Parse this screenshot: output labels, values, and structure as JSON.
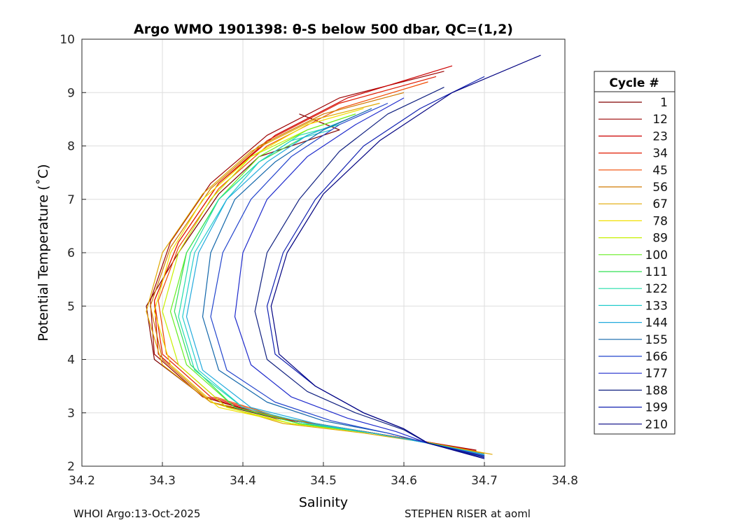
{
  "chart_data": {
    "type": "line",
    "title": "Argo WMO 1901398: θ-S below 500 dbar,  QC=(1,2)",
    "xlabel": "Salinity",
    "ylabel": "Potential Temperature (˚C)",
    "xlim": [
      34.2,
      34.8
    ],
    "ylim": [
      2,
      10
    ],
    "xticks": [
      "34.2",
      "34.3",
      "34.4",
      "34.5",
      "34.6",
      "34.7",
      "34.8"
    ],
    "yticks": [
      "2",
      "3",
      "4",
      "5",
      "6",
      "7",
      "8",
      "9",
      "10"
    ],
    "grid": true,
    "legend": {
      "title": "Cycle #",
      "placement": "outside-right",
      "entries": [
        "1",
        "12",
        "23",
        "34",
        "45",
        "56",
        "67",
        "78",
        "89",
        "100",
        "111",
        "122",
        "133",
        "144",
        "155",
        "166",
        "177",
        "188",
        "199",
        "210"
      ],
      "colors": [
        "#800000",
        "#9c0000",
        "#cc0000",
        "#e01a00",
        "#f04a00",
        "#d07a00",
        "#e0a800",
        "#f2e000",
        "#c8f000",
        "#66ee22",
        "#33e055",
        "#22ddaa",
        "#22cccc",
        "#22aadd",
        "#1166aa",
        "#2244cc",
        "#1f2bcc",
        "#102080",
        "#1020b0",
        "#000080"
      ]
    },
    "series": [
      {
        "name": "1",
        "color": "#800000",
        "s": [
          34.47,
          34.52,
          34.42,
          34.37,
          34.32,
          34.28,
          34.29,
          34.36,
          34.44,
          34.55,
          34.63,
          34.68
        ],
        "t": [
          8.6,
          8.3,
          7.8,
          7.1,
          6.0,
          5.0,
          4.0,
          3.2,
          2.9,
          2.65,
          2.45,
          2.3
        ]
      },
      {
        "name": "12",
        "color": "#9c0000",
        "s": [
          34.65,
          34.52,
          34.43,
          34.36,
          34.31,
          34.285,
          34.29,
          34.35,
          34.44,
          34.55,
          34.63,
          34.69
        ],
        "t": [
          9.4,
          8.9,
          8.2,
          7.3,
          6.2,
          5.1,
          4.1,
          3.3,
          2.9,
          2.65,
          2.45,
          2.3
        ]
      },
      {
        "name": "23",
        "color": "#cc0000",
        "s": [
          34.66,
          34.53,
          34.44,
          34.37,
          34.32,
          34.29,
          34.295,
          34.355,
          34.44,
          34.55,
          34.63,
          34.69
        ],
        "t": [
          9.5,
          8.9,
          8.2,
          7.3,
          6.2,
          5.1,
          4.1,
          3.3,
          2.9,
          2.65,
          2.45,
          2.28
        ]
      },
      {
        "name": "34",
        "color": "#e01a00",
        "s": [
          34.64,
          34.52,
          34.43,
          34.37,
          34.32,
          34.29,
          34.3,
          34.36,
          34.445,
          34.55,
          34.63,
          34.69
        ],
        "t": [
          9.3,
          8.8,
          8.1,
          7.3,
          6.2,
          5.1,
          4.1,
          3.3,
          2.9,
          2.65,
          2.45,
          2.28
        ]
      },
      {
        "name": "45",
        "color": "#f04a00",
        "s": [
          34.63,
          34.52,
          34.43,
          34.37,
          34.32,
          34.295,
          34.305,
          34.365,
          34.45,
          34.55,
          34.63,
          34.69
        ],
        "t": [
          9.2,
          8.7,
          8.0,
          7.2,
          6.1,
          5.1,
          4.1,
          3.3,
          2.9,
          2.65,
          2.45,
          2.26
        ]
      },
      {
        "name": "56",
        "color": "#d07a00",
        "s": [
          34.6,
          34.5,
          34.42,
          34.36,
          34.31,
          34.285,
          34.3,
          34.36,
          34.45,
          34.55,
          34.63,
          34.7
        ],
        "t": [
          9.0,
          8.6,
          8.0,
          7.2,
          6.1,
          5.0,
          4.0,
          3.2,
          2.9,
          2.65,
          2.44,
          2.24
        ]
      },
      {
        "name": "67",
        "color": "#e0a800",
        "s": [
          34.57,
          34.49,
          34.41,
          34.35,
          34.3,
          34.28,
          34.3,
          34.36,
          34.45,
          34.55,
          34.63,
          34.71
        ],
        "t": [
          8.8,
          8.5,
          7.9,
          7.1,
          6.0,
          4.9,
          3.9,
          3.2,
          2.8,
          2.62,
          2.44,
          2.22
        ]
      },
      {
        "name": "78",
        "color": "#f2e000",
        "s": [
          34.55,
          34.48,
          34.41,
          34.35,
          34.31,
          34.29,
          34.31,
          34.37,
          34.46,
          34.56,
          34.63,
          34.7
        ],
        "t": [
          8.7,
          8.4,
          7.8,
          7.0,
          6.0,
          4.9,
          3.9,
          3.1,
          2.8,
          2.62,
          2.44,
          2.22
        ]
      },
      {
        "name": "89",
        "color": "#c8f000",
        "s": [
          34.54,
          34.48,
          34.41,
          34.36,
          34.32,
          34.3,
          34.32,
          34.38,
          34.46,
          34.56,
          34.63,
          34.7
        ],
        "t": [
          8.6,
          8.3,
          7.8,
          7.0,
          6.0,
          4.9,
          3.9,
          3.1,
          2.8,
          2.62,
          2.44,
          2.22
        ]
      },
      {
        "name": "100",
        "color": "#66ee22",
        "s": [
          34.54,
          34.48,
          34.42,
          34.37,
          34.33,
          34.31,
          34.33,
          34.39,
          34.47,
          34.56,
          34.63,
          34.7
        ],
        "t": [
          8.6,
          8.3,
          7.8,
          7.0,
          6.0,
          4.9,
          3.9,
          3.1,
          2.8,
          2.62,
          2.44,
          2.22
        ]
      },
      {
        "name": "111",
        "color": "#33e055",
        "s": [
          34.53,
          34.48,
          34.42,
          34.37,
          34.33,
          34.315,
          34.335,
          34.39,
          34.47,
          34.56,
          34.63,
          34.7
        ],
        "t": [
          8.5,
          8.2,
          7.7,
          7.0,
          6.0,
          4.9,
          3.9,
          3.1,
          2.8,
          2.62,
          2.44,
          2.22
        ]
      },
      {
        "name": "122",
        "color": "#22ddaa",
        "s": [
          34.52,
          34.47,
          34.42,
          34.37,
          34.335,
          34.32,
          34.34,
          34.4,
          34.48,
          34.57,
          34.63,
          34.7
        ],
        "t": [
          8.4,
          8.2,
          7.7,
          7.0,
          6.0,
          4.8,
          3.8,
          3.1,
          2.8,
          2.6,
          2.43,
          2.22
        ]
      },
      {
        "name": "133",
        "color": "#22cccc",
        "s": [
          34.51,
          34.46,
          34.42,
          34.38,
          34.34,
          34.325,
          34.345,
          34.4,
          34.48,
          34.57,
          34.63,
          34.7
        ],
        "t": [
          8.3,
          8.1,
          7.7,
          7.0,
          6.0,
          4.8,
          3.8,
          3.1,
          2.8,
          2.6,
          2.43,
          2.22
        ]
      },
      {
        "name": "144",
        "color": "#22aadd",
        "s": [
          34.53,
          34.48,
          34.43,
          34.38,
          34.345,
          34.33,
          34.35,
          34.41,
          34.49,
          34.57,
          34.63,
          34.7
        ],
        "t": [
          8.5,
          8.2,
          7.7,
          7.0,
          6.0,
          4.8,
          3.8,
          3.1,
          2.8,
          2.6,
          2.43,
          2.22
        ]
      },
      {
        "name": "155",
        "color": "#1166aa",
        "s": [
          34.56,
          34.5,
          34.44,
          34.39,
          34.36,
          34.35,
          34.37,
          34.43,
          34.5,
          34.58,
          34.63,
          34.7
        ],
        "t": [
          8.7,
          8.3,
          7.7,
          7.0,
          6.0,
          4.8,
          3.8,
          3.2,
          2.85,
          2.62,
          2.43,
          2.2
        ]
      },
      {
        "name": "166",
        "color": "#2244cc",
        "s": [
          34.58,
          34.52,
          34.46,
          34.41,
          34.375,
          34.36,
          34.38,
          34.44,
          34.51,
          34.58,
          34.63,
          34.7
        ],
        "t": [
          8.8,
          8.4,
          7.8,
          7.0,
          6.0,
          4.8,
          3.8,
          3.2,
          2.85,
          2.62,
          2.43,
          2.2
        ]
      },
      {
        "name": "177",
        "color": "#1f2bcc",
        "s": [
          34.6,
          34.54,
          34.48,
          34.43,
          34.4,
          34.39,
          34.41,
          34.46,
          34.53,
          34.59,
          34.63,
          34.7
        ],
        "t": [
          8.9,
          8.4,
          7.8,
          7.0,
          6.0,
          4.8,
          3.9,
          3.3,
          2.9,
          2.65,
          2.43,
          2.18
        ]
      },
      {
        "name": "188",
        "color": "#102080",
        "s": [
          34.65,
          34.58,
          34.52,
          34.47,
          34.43,
          34.415,
          34.43,
          34.48,
          34.54,
          34.6,
          34.63,
          34.7
        ],
        "t": [
          9.1,
          8.6,
          7.9,
          7.0,
          6.0,
          4.9,
          4.0,
          3.4,
          3.0,
          2.68,
          2.43,
          2.18
        ]
      },
      {
        "name": "199",
        "color": "#1020b0",
        "s": [
          34.7,
          34.62,
          34.55,
          34.49,
          34.45,
          34.43,
          34.44,
          34.49,
          34.55,
          34.6,
          34.63,
          34.7
        ],
        "t": [
          9.3,
          8.7,
          8.0,
          7.0,
          6.0,
          5.0,
          4.1,
          3.5,
          3.0,
          2.7,
          2.43,
          2.16
        ]
      },
      {
        "name": "210",
        "color": "#000080",
        "s": [
          34.77,
          34.66,
          34.57,
          34.5,
          34.455,
          34.435,
          34.445,
          34.49,
          34.55,
          34.6,
          34.63,
          34.7
        ],
        "t": [
          9.7,
          9.0,
          8.1,
          7.1,
          6.0,
          5.0,
          4.1,
          3.5,
          3.0,
          2.7,
          2.43,
          2.14
        ]
      }
    ]
  },
  "footer": {
    "left": "WHOI Argo:13-Oct-2025",
    "right": "STEPHEN RISER at aoml"
  }
}
